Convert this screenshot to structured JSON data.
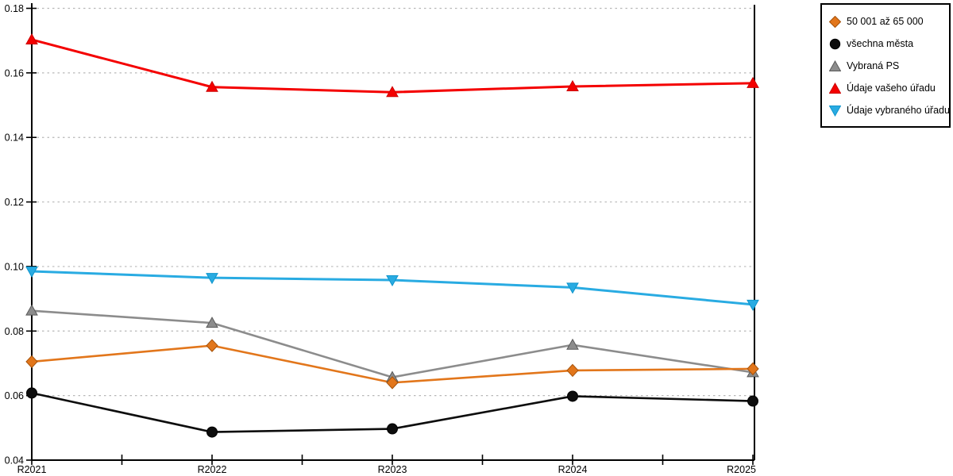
{
  "chart_data": {
    "type": "line",
    "title": "",
    "xlabel": "",
    "ylabel": "",
    "categories": [
      "R2021",
      "R2022",
      "R2023",
      "R2024",
      "R2025"
    ],
    "ylim": [
      0.04,
      0.18
    ],
    "y_ticks": [
      0.04,
      0.06,
      0.08,
      0.1,
      0.12,
      0.14,
      0.16,
      0.18
    ],
    "y_tick_format": "2-decimals",
    "grid": "horizontal-dashed",
    "grid_color": "#b8b8b8",
    "axis_color": "#000000",
    "legend_position": "top-right",
    "series": [
      {
        "name": "50 001 až 65 000",
        "marker": "diamond",
        "color": "#e2761b",
        "edge": "#a5520a",
        "values": [
          0.0705,
          0.0755,
          0.064,
          0.0678,
          0.0683
        ]
      },
      {
        "name": "všechna města",
        "marker": "circle",
        "color": "#0d0d0d",
        "edge": "#000000",
        "values": [
          0.0608,
          0.0487,
          0.0497,
          0.0598,
          0.0583
        ]
      },
      {
        "name": "Vybraná PS",
        "marker": "triangle-up",
        "color": "#8c8c8c",
        "edge": "#5a5a5a",
        "values": [
          0.0863,
          0.0825,
          0.0657,
          0.0757,
          0.0672
        ]
      },
      {
        "name": "Údaje vašeho úřadu",
        "marker": "triangle-up",
        "color": "#f40000",
        "edge": "#cc0000",
        "values": [
          0.1703,
          0.1556,
          0.154,
          0.1558,
          0.1568
        ]
      },
      {
        "name": "Údaje vybraného úřadu",
        "marker": "triangle-down",
        "color": "#29abe2",
        "edge": "#0f95cc",
        "values": [
          0.0985,
          0.0965,
          0.0958,
          0.0935,
          0.0882
        ]
      }
    ]
  }
}
